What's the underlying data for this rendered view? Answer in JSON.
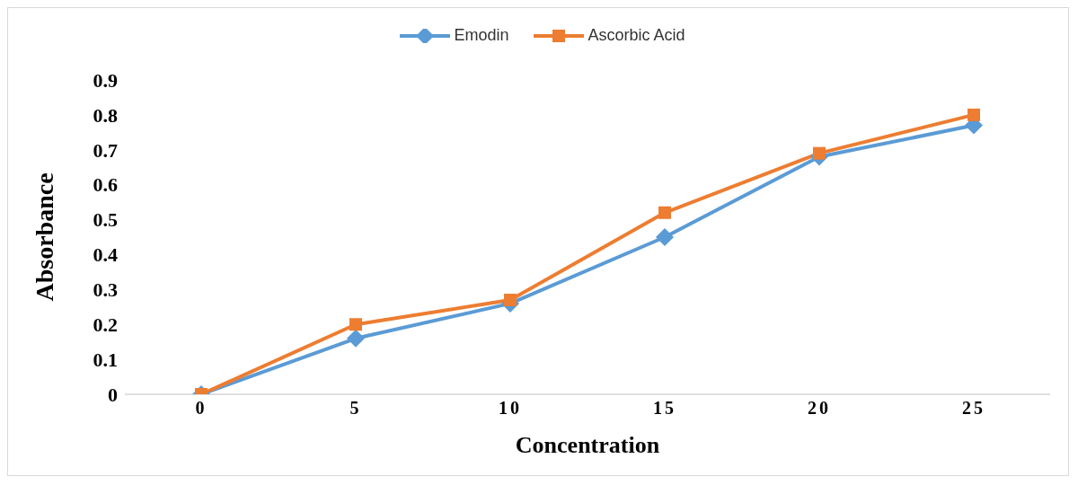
{
  "chart_data": {
    "type": "line",
    "xlabel": "Concentration",
    "ylabel": "Absorbance",
    "categories": [
      "0",
      "5",
      "10",
      "15",
      "20",
      "25"
    ],
    "series": [
      {
        "name": "Emodin",
        "color": "#5b9bd5",
        "marker": "diamond",
        "values": [
          0,
          0.16,
          0.26,
          0.45,
          0.68,
          0.77
        ]
      },
      {
        "name": "Ascorbic Acid",
        "color": "#ed7d31",
        "marker": "square",
        "values": [
          0,
          0.2,
          0.27,
          0.52,
          0.69,
          0.8
        ]
      }
    ],
    "ylim": [
      0,
      0.9
    ],
    "yticks": [
      0,
      0.1,
      0.2,
      0.3,
      0.4,
      0.5,
      0.6,
      0.7,
      0.8,
      0.9
    ],
    "grid": false,
    "legend": "top"
  }
}
